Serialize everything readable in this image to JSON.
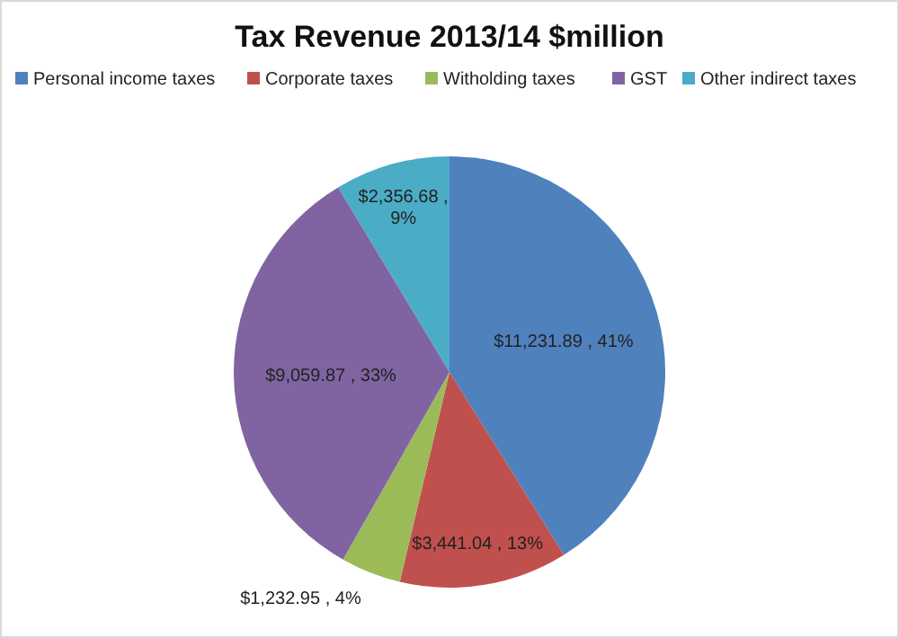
{
  "chart_data": {
    "type": "pie",
    "title": "Tax Revenue 2013/14 $million",
    "categories": [
      "Personal income taxes",
      "Corporate taxes",
      "Witholding taxes",
      "GST",
      "Other indirect taxes"
    ],
    "values": [
      11231.89,
      3441.04,
      1232.95,
      9059.87,
      2356.68
    ],
    "colors": [
      "#4f81bd",
      "#c0504d",
      "#9bbb59",
      "#8064a2",
      "#4bacc6"
    ],
    "value_labels": [
      "$11,231.89 , 41%",
      "$3,441.04 , 13%",
      "$1,232.95 , 4%",
      "$9,059.87 , 33%",
      "$2,356.68 , 9%"
    ],
    "legend": "top"
  }
}
